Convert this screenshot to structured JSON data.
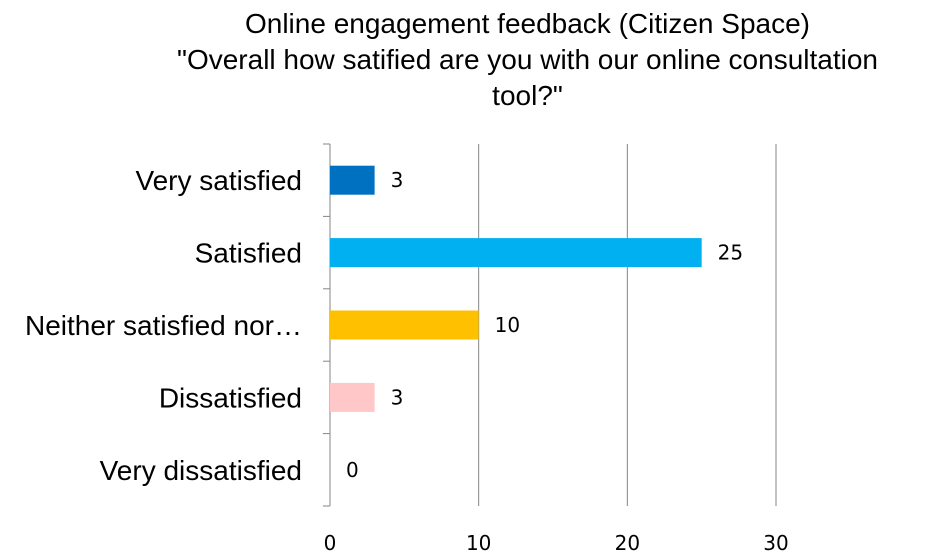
{
  "chart_data": {
    "type": "bar",
    "orientation": "horizontal",
    "title_line1": "Online engagement feedback (Citizen Space)",
    "title_line2": "\"Overall how satified are you with our online consultation",
    "title_line3": "tool?\"",
    "categories": [
      "Very satisfied",
      "Satisfied",
      "Neither satisfied nor…",
      "Dissatisfied",
      "Very dissatisfied"
    ],
    "values": [
      3,
      25,
      10,
      3,
      0
    ],
    "value_labels": [
      "3",
      "25",
      "10",
      "3",
      "0"
    ],
    "colors": [
      "#0070C0",
      "#00B0F0",
      "#FFC000",
      "#FFC7C7",
      "#9BBB59"
    ],
    "xlim": [
      0,
      30
    ],
    "x_ticks": [
      0,
      10,
      20,
      30
    ],
    "x_tick_labels": [
      "0",
      "10",
      "20",
      "30"
    ],
    "grid": true,
    "legend": "none"
  }
}
